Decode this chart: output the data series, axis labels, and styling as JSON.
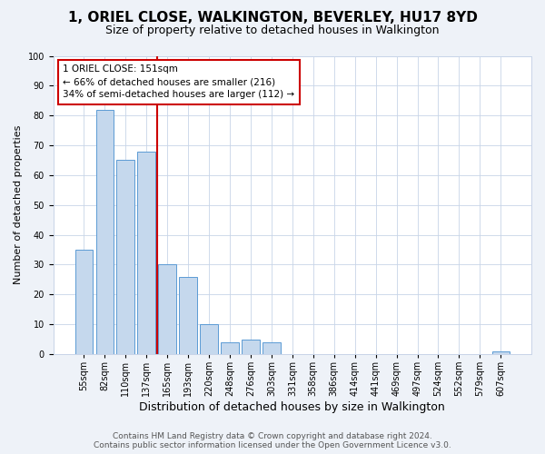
{
  "title": "1, ORIEL CLOSE, WALKINGTON, BEVERLEY, HU17 8YD",
  "subtitle": "Size of property relative to detached houses in Walkington",
  "xlabel": "Distribution of detached houses by size in Walkington",
  "ylabel": "Number of detached properties",
  "bar_labels": [
    "55sqm",
    "82sqm",
    "110sqm",
    "137sqm",
    "165sqm",
    "193sqm",
    "220sqm",
    "248sqm",
    "276sqm",
    "303sqm",
    "331sqm",
    "358sqm",
    "386sqm",
    "414sqm",
    "441sqm",
    "469sqm",
    "497sqm",
    "524sqm",
    "552sqm",
    "579sqm",
    "607sqm"
  ],
  "bar_values": [
    35,
    82,
    65,
    68,
    30,
    26,
    10,
    4,
    5,
    4,
    0,
    0,
    0,
    0,
    0,
    0,
    0,
    0,
    0,
    0,
    1
  ],
  "bar_color": "#c5d8ed",
  "bar_edge_color": "#5b9bd5",
  "vline_x": 3.5,
  "vline_color": "#cc0000",
  "annotation_text": "1 ORIEL CLOSE: 151sqm\n← 66% of detached houses are smaller (216)\n34% of semi-detached houses are larger (112) →",
  "annotation_box_color": "#cc0000",
  "ylim": [
    0,
    100
  ],
  "yticks": [
    0,
    10,
    20,
    30,
    40,
    50,
    60,
    70,
    80,
    90,
    100
  ],
  "footer_line1": "Contains HM Land Registry data © Crown copyright and database right 2024.",
  "footer_line2": "Contains public sector information licensed under the Open Government Licence v3.0.",
  "bg_color": "#eef2f8",
  "plot_bg_color": "#ffffff",
  "grid_color": "#c8d4e8",
  "title_fontsize": 11,
  "subtitle_fontsize": 9,
  "xlabel_fontsize": 9,
  "ylabel_fontsize": 8,
  "tick_fontsize": 7,
  "annotation_fontsize": 7.5,
  "footer_fontsize": 6.5
}
